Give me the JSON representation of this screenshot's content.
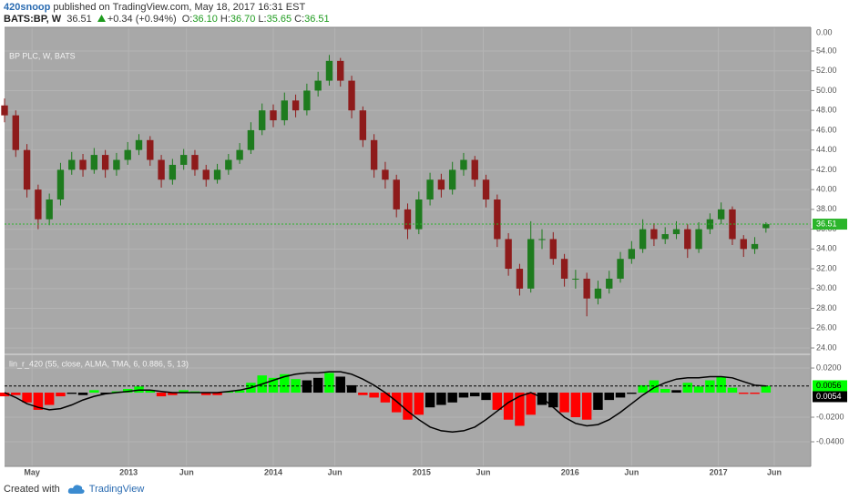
{
  "header": {
    "author": "420snoop",
    "published": "published on TradingView.com, May 18, 2017 16:31 EST",
    "symbol": "BATS:BP, W",
    "last": "36.51",
    "change": "+0.34 (+0.94%)",
    "ohlc": [
      {
        "label": "O:",
        "value": "36.10"
      },
      {
        "label": "H:",
        "value": "36.70"
      },
      {
        "label": "L:",
        "value": "35.65"
      },
      {
        "label": "C:",
        "value": "36.51"
      }
    ]
  },
  "footer": {
    "created": "Created with",
    "brand": "TradingView"
  },
  "chart_data": [
    {
      "type": "candlestick",
      "title": "BP PLC, W, BATS",
      "x": [
        0,
        4,
        8,
        12,
        16,
        20,
        24,
        28,
        32,
        36,
        40,
        44,
        48,
        52,
        56,
        60,
        64,
        68,
        72,
        76,
        80,
        84,
        88,
        92,
        96,
        100,
        104,
        108,
        112,
        116,
        120,
        124,
        128,
        132,
        136,
        140,
        144,
        148,
        152,
        156,
        160,
        164,
        168,
        172,
        176,
        180,
        184,
        188,
        192,
        196,
        200,
        204,
        208,
        212,
        216,
        220,
        224,
        228,
        232,
        236,
        240,
        244,
        248,
        252,
        256,
        260,
        264,
        268,
        272
      ],
      "open": [
        48.5,
        47.5,
        44,
        40,
        37,
        39,
        42,
        43,
        42,
        43.5,
        42,
        43,
        44,
        45,
        43,
        41,
        42.5,
        43.5,
        42,
        41,
        42,
        43,
        44,
        46,
        48,
        47,
        49,
        48,
        50,
        51,
        53,
        51,
        48,
        45,
        42,
        41,
        38,
        36,
        39,
        41,
        40,
        42,
        43,
        41,
        39,
        35,
        32,
        30,
        35,
        35,
        33,
        31,
        31,
        29,
        30,
        31,
        33,
        34,
        36,
        35,
        35.5,
        36,
        34,
        36,
        37,
        38,
        35,
        34,
        36.1
      ],
      "high": [
        49.2,
        48.0,
        44.6,
        40.5,
        39.6,
        42.7,
        43.8,
        43.6,
        44.2,
        44.0,
        43.7,
        44.8,
        45.6,
        45.4,
        43.5,
        43.1,
        44.1,
        44.0,
        42.5,
        42.6,
        43.6,
        44.7,
        46.8,
        48.7,
        48.6,
        49.8,
        49.6,
        50.7,
        51.9,
        53.6,
        53.3,
        51.5,
        48.4,
        45.6,
        42.8,
        41.5,
        38.6,
        39.8,
        41.7,
        41.6,
        42.8,
        43.7,
        43.4,
        41.5,
        39.5,
        35.6,
        32.5,
        36.8,
        36.0,
        35.7,
        33.5,
        31.9,
        31.6,
        30.8,
        31.8,
        33.7,
        34.8,
        37.0,
        36.6,
        36.2,
        36.8,
        36.5,
        36.7,
        37.6,
        38.7,
        38.3,
        35.4,
        35.2,
        36.7
      ],
      "low": [
        46.8,
        43.3,
        39.2,
        36.0,
        36.4,
        38.4,
        41.5,
        41.3,
        41.6,
        41.2,
        41.4,
        42.5,
        43.5,
        42.4,
        40.2,
        40.5,
        42.0,
        41.4,
        40.3,
        40.6,
        41.5,
        42.6,
        43.6,
        45.5,
        46.3,
        46.5,
        47.3,
        47.5,
        49.4,
        50.5,
        50.4,
        47.2,
        44.3,
        41.2,
        40.1,
        37.2,
        35.0,
        35.5,
        38.4,
        39.2,
        39.5,
        41.4,
        40.3,
        38.2,
        34.2,
        31.3,
        29.3,
        29.6,
        34.0,
        32.4,
        30.2,
        30.0,
        27.2,
        28.4,
        29.5,
        30.6,
        32.5,
        33.6,
        34.3,
        34.5,
        35.0,
        33.1,
        33.6,
        35.5,
        36.5,
        34.4,
        33.2,
        33.5,
        35.65
      ],
      "close": [
        47.5,
        44,
        40,
        37,
        39,
        42,
        43,
        42,
        43.5,
        42,
        43,
        44,
        45,
        43,
        41,
        42.5,
        43.5,
        42,
        41,
        42,
        43,
        44,
        46,
        48,
        47,
        49,
        48,
        50,
        51,
        53,
        51,
        48,
        45,
        42,
        41,
        38,
        36,
        39,
        41,
        40,
        42,
        43,
        41,
        39,
        35,
        32,
        30,
        35,
        35,
        33,
        31,
        31,
        29,
        30,
        31,
        33,
        34,
        36,
        35,
        35.5,
        36,
        34,
        36,
        37,
        38,
        35,
        34,
        34.5,
        36.51
      ],
      "up_color": "#1e7b1e",
      "down_color": "#8e1b1b",
      "xlim": [
        0,
        288
      ],
      "xticks": [
        {
          "value": 9.8,
          "label": "May"
        },
        {
          "value": 44.3,
          "label": "2013"
        },
        {
          "value": 65,
          "label": "Jun"
        },
        {
          "value": 96,
          "label": "2014"
        },
        {
          "value": 118,
          "label": "Jun"
        },
        {
          "value": 149,
          "label": "2015"
        },
        {
          "value": 171,
          "label": "Jun"
        },
        {
          "value": 202,
          "label": "2016"
        },
        {
          "value": 224,
          "label": "Jun"
        },
        {
          "value": 255,
          "label": "2017"
        },
        {
          "value": 275,
          "label": "Jun"
        }
      ],
      "ylim": [
        23.45,
        56.39
      ],
      "yticks": [
        {
          "value": 24,
          "label": "24.00"
        },
        {
          "value": 26,
          "label": "26.00"
        },
        {
          "value": 28,
          "label": "28.00"
        },
        {
          "value": 30,
          "label": "30.00"
        },
        {
          "value": 32,
          "label": "32.00"
        },
        {
          "value": 34,
          "label": "34.00"
        },
        {
          "value": 36,
          "label": "36.00"
        },
        {
          "value": 38,
          "label": "38.00"
        },
        {
          "value": 40,
          "label": "40.00"
        },
        {
          "value": 42,
          "label": "42.00"
        },
        {
          "value": 44,
          "label": "44.00"
        },
        {
          "value": 46,
          "label": "46.00"
        },
        {
          "value": 48,
          "label": "48.00"
        },
        {
          "value": 50,
          "label": "50.00"
        },
        {
          "value": 52,
          "label": "52.00"
        },
        {
          "value": 54,
          "label": "54.00"
        }
      ],
      "axis_top_label": "0.00",
      "price_line": {
        "value": 36.51,
        "label": "36.51",
        "color": "#2bb52b"
      },
      "grid": true
    },
    {
      "type": "bar",
      "title": "lin_r_420 (55, close, ALMA, TMA, 6, 0.886, 5, 13)",
      "x": [
        0,
        4,
        8,
        12,
        16,
        20,
        24,
        28,
        32,
        36,
        40,
        44,
        48,
        52,
        56,
        60,
        64,
        68,
        72,
        76,
        80,
        84,
        88,
        92,
        96,
        100,
        104,
        108,
        112,
        116,
        120,
        124,
        128,
        132,
        136,
        140,
        144,
        148,
        152,
        156,
        160,
        164,
        168,
        172,
        176,
        180,
        184,
        188,
        192,
        196,
        200,
        204,
        208,
        212,
        216,
        220,
        224,
        228,
        232,
        236,
        240,
        244,
        248,
        252,
        256,
        260,
        264,
        268,
        272
      ],
      "values": [
        -0.003,
        -0.002,
        -0.008,
        -0.014,
        -0.01,
        -0.003,
        -0.001,
        -0.002,
        0.002,
        -0.001,
        0.001,
        0.003,
        0.005,
        0.002,
        -0.003,
        -0.002,
        0.002,
        0.001,
        -0.002,
        -0.002,
        0.001,
        0.002,
        0.008,
        0.014,
        0.012,
        0.015,
        0.011,
        0.01,
        0.012,
        0.016,
        0.013,
        0.006,
        -0.002,
        -0.004,
        -0.008,
        -0.016,
        -0.022,
        -0.018,
        -0.012,
        -0.01,
        -0.008,
        -0.004,
        -0.003,
        -0.006,
        -0.014,
        -0.022,
        -0.027,
        -0.018,
        -0.01,
        -0.012,
        -0.016,
        -0.02,
        -0.022,
        -0.014,
        -0.006,
        -0.004,
        -0.001,
        0.006,
        0.01,
        0.003,
        0.002,
        0.008,
        0.005,
        0.01,
        0.013,
        0.004,
        -0.001,
        -0.001,
        0.0056
      ],
      "colors": [
        "#ff0000",
        "#ff0000",
        "#ff0000",
        "#ff0000",
        "#ff0000",
        "#ff0000",
        "#000000",
        "#000000",
        "#00ff00",
        "#000000",
        "#00ff00",
        "#00ff00",
        "#00ff00",
        "#00ff00",
        "#ff0000",
        "#ff0000",
        "#00ff00",
        "#00ff00",
        "#ff0000",
        "#ff0000",
        "#00ff00",
        "#00ff00",
        "#00ff00",
        "#00ff00",
        "#00ff00",
        "#00ff00",
        "#00ff00",
        "#000000",
        "#000000",
        "#00ff00",
        "#000000",
        "#000000",
        "#ff0000",
        "#ff0000",
        "#ff0000",
        "#ff0000",
        "#ff0000",
        "#ff0000",
        "#000000",
        "#000000",
        "#000000",
        "#000000",
        "#000000",
        "#000000",
        "#ff0000",
        "#ff0000",
        "#ff0000",
        "#ff0000",
        "#000000",
        "#000000",
        "#ff0000",
        "#ff0000",
        "#ff0000",
        "#000000",
        "#000000",
        "#000000",
        "#000000",
        "#00ff00",
        "#00ff00",
        "#00ff00",
        "#000000",
        "#00ff00",
        "#00ff00",
        "#00ff00",
        "#00ff00",
        "#00ff00",
        "#ff0000",
        "#ff0000",
        "#00ff00"
      ],
      "line": {
        "color": "#000000",
        "values": [
          0.0,
          -0.004,
          -0.009,
          -0.012,
          -0.014,
          -0.013,
          -0.01,
          -0.006,
          -0.003,
          -0.001,
          0.0,
          0.001,
          0.002,
          0.002,
          0.001,
          0.0,
          0.0,
          0.0,
          0.0,
          0.0,
          0.001,
          0.002,
          0.004,
          0.007,
          0.01,
          0.013,
          0.015,
          0.016,
          0.016,
          0.017,
          0.017,
          0.015,
          0.011,
          0.006,
          0.0,
          -0.007,
          -0.015,
          -0.022,
          -0.028,
          -0.031,
          -0.032,
          -0.031,
          -0.028,
          -0.022,
          -0.015,
          -0.008,
          -0.003,
          0.0,
          -0.004,
          -0.012,
          -0.02,
          -0.025,
          -0.027,
          -0.026,
          -0.022,
          -0.016,
          -0.009,
          -0.002,
          0.004,
          0.008,
          0.011,
          0.012,
          0.012,
          0.013,
          0.013,
          0.012,
          0.009,
          0.006,
          0.0054
        ]
      },
      "last_labels": [
        {
          "value": 0.0056,
          "label": "0.0056",
          "color": "#00ff00",
          "text_color": "#000000"
        },
        {
          "value": 0.0054,
          "label": "0.0054",
          "color": "#000000",
          "text_color": "#ffffff"
        }
      ],
      "ylim": [
        -0.06,
        0.0304
      ],
      "yticks": [
        {
          "value": 0.02,
          "label": "0.0200"
        },
        {
          "value": -0.02,
          "label": "-0.0200"
        },
        {
          "value": -0.04,
          "label": "-0.0400"
        }
      ]
    }
  ]
}
